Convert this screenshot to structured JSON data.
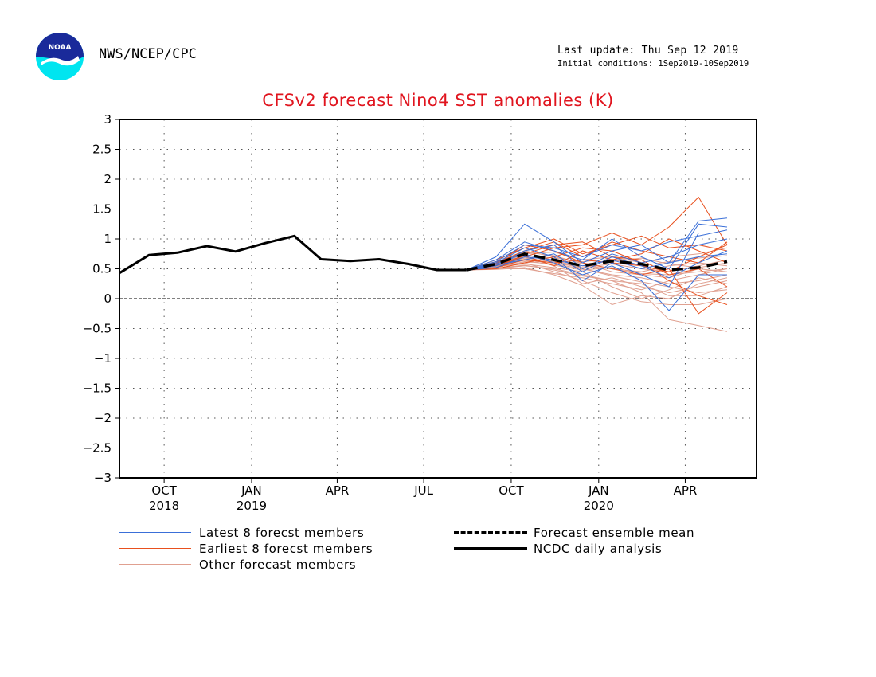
{
  "header": {
    "agency": "NWS/NCEP/CPC",
    "last_update": "Last update: Thu Sep 12 2019",
    "initial_conditions": "Initial conditions: 1Sep2019-10Sep2019",
    "logo_text": "NOAA"
  },
  "colors": {
    "title": "#e0141e",
    "latest_members": "#3a6fd8",
    "earliest_members": "#e8501e",
    "other_members": "#e0a090",
    "mean": "#000000",
    "analysis": "#000000"
  },
  "legend": {
    "latest": "Latest 8 forecst members",
    "earliest": "Earliest 8 forecst members",
    "other": "Other forecast members",
    "mean": "Forecast ensemble mean",
    "analysis": "NCDC daily analysis"
  },
  "chart_data": {
    "type": "line",
    "title": "CFSv2 forecast Nino4 SST anomalies (K)",
    "ylim": [
      -3,
      3
    ],
    "xlim": [
      "2018-08-15",
      "2020-06-15"
    ],
    "y_ticks": [
      "3",
      "2.5",
      "2",
      "1.5",
      "1",
      "0.5",
      "0",
      "−0.5",
      "−1",
      "−1.5",
      "−2",
      "−2.5",
      "−3"
    ],
    "y_tick_values": [
      3,
      2.5,
      2,
      1.5,
      1,
      0.5,
      0,
      -0.5,
      -1,
      -1.5,
      -2,
      -2.5,
      -3
    ],
    "x_ticks": [
      {
        "date": "2018-10-01",
        "label": "OCT",
        "year": "2018"
      },
      {
        "date": "2019-01-01",
        "label": "JAN",
        "year": "2019"
      },
      {
        "date": "2019-04-01",
        "label": "APR",
        "year": ""
      },
      {
        "date": "2019-07-01",
        "label": "JUL",
        "year": ""
      },
      {
        "date": "2019-10-01",
        "label": "OCT",
        "year": ""
      },
      {
        "date": "2020-01-01",
        "label": "JAN",
        "year": "2020"
      },
      {
        "date": "2020-04-01",
        "label": "APR",
        "year": ""
      }
    ],
    "grid": true,
    "analysis": {
      "name": "NCDC daily analysis",
      "x": [
        "2018-08-15",
        "2018-09-15",
        "2018-10-15",
        "2018-11-15",
        "2018-12-15",
        "2019-01-15",
        "2019-02-15",
        "2019-03-15",
        "2019-04-15",
        "2019-05-15",
        "2019-06-15",
        "2019-07-15",
        "2019-08-15"
      ],
      "y": [
        0.43,
        0.73,
        0.77,
        0.88,
        0.79,
        0.93,
        1.05,
        0.66,
        0.63,
        0.66,
        0.58,
        0.48,
        0.48
      ]
    },
    "mean": {
      "name": "Forecast ensemble mean",
      "x": [
        "2019-08-15",
        "2019-09-15",
        "2019-10-15",
        "2019-11-15",
        "2019-12-15",
        "2020-01-15",
        "2020-02-15",
        "2020-03-15",
        "2020-04-15",
        "2020-05-15"
      ],
      "y": [
        0.48,
        0.58,
        0.75,
        0.65,
        0.55,
        0.63,
        0.58,
        0.48,
        0.52,
        0.62
      ]
    },
    "members_x": [
      "2019-08-15",
      "2019-09-15",
      "2019-10-15",
      "2019-11-15",
      "2019-12-15",
      "2020-01-15",
      "2020-02-15",
      "2020-03-15",
      "2020-04-15",
      "2020-05-15"
    ],
    "latest_members": [
      [
        0.48,
        0.7,
        1.25,
        0.95,
        0.6,
        0.8,
        0.9,
        0.6,
        1.3,
        1.35
      ],
      [
        0.48,
        0.65,
        0.95,
        0.8,
        0.65,
        1.0,
        0.7,
        0.5,
        1.25,
        1.2
      ],
      [
        0.48,
        0.6,
        0.85,
        0.7,
        0.3,
        0.6,
        0.4,
        0.2,
        1.1,
        1.1
      ],
      [
        0.48,
        0.55,
        0.8,
        0.9,
        0.5,
        0.75,
        0.6,
        0.7,
        0.9,
        1.0
      ],
      [
        0.48,
        0.58,
        0.75,
        0.6,
        0.4,
        0.55,
        0.3,
        -0.2,
        0.4,
        0.4
      ],
      [
        0.48,
        0.62,
        0.9,
        0.85,
        0.7,
        0.9,
        0.8,
        0.95,
        1.05,
        1.15
      ],
      [
        0.48,
        0.52,
        0.7,
        0.65,
        0.55,
        0.65,
        0.5,
        0.6,
        0.7,
        0.75
      ],
      [
        0.48,
        0.56,
        0.65,
        0.75,
        0.45,
        0.7,
        0.55,
        0.35,
        0.6,
        0.8
      ]
    ],
    "earliest_members": [
      [
        0.48,
        0.55,
        0.7,
        0.85,
        0.9,
        1.1,
        0.9,
        1.2,
        1.7,
        0.9
      ],
      [
        0.48,
        0.6,
        0.8,
        0.95,
        0.7,
        0.95,
        0.8,
        0.7,
        0.6,
        0.95
      ],
      [
        0.48,
        0.5,
        0.6,
        0.7,
        0.85,
        0.8,
        0.6,
        0.3,
        0.05,
        -0.1
      ],
      [
        0.48,
        0.58,
        0.9,
        0.8,
        0.6,
        0.5,
        0.4,
        0.5,
        -0.25,
        0.1
      ],
      [
        0.48,
        0.65,
        0.85,
        1.0,
        0.75,
        0.9,
        1.05,
        0.85,
        0.9,
        0.8
      ],
      [
        0.48,
        0.52,
        0.65,
        0.6,
        0.65,
        0.6,
        0.55,
        0.45,
        0.7,
        0.9
      ],
      [
        0.48,
        0.62,
        0.75,
        0.9,
        0.95,
        0.7,
        0.65,
        0.4,
        0.5,
        0.2
      ],
      [
        0.48,
        0.56,
        0.72,
        0.55,
        0.8,
        0.65,
        0.75,
        1.0,
        0.8,
        0.6
      ]
    ],
    "other_members": [
      [
        0.48,
        0.5,
        0.55,
        0.5,
        0.4,
        0.3,
        0.1,
        -0.35,
        -0.45,
        -0.55
      ],
      [
        0.48,
        0.55,
        0.6,
        0.45,
        0.3,
        0.1,
        -0.05,
        -0.1,
        -0.1,
        0.0
      ],
      [
        0.48,
        0.58,
        0.7,
        0.55,
        0.25,
        0.35,
        0.2,
        0.1,
        0.2,
        0.3
      ],
      [
        0.48,
        0.6,
        0.8,
        0.7,
        0.6,
        0.45,
        0.4,
        0.35,
        0.5,
        0.45
      ],
      [
        0.48,
        0.52,
        0.62,
        0.58,
        0.5,
        0.4,
        0.35,
        0.25,
        0.3,
        0.4
      ],
      [
        0.48,
        0.56,
        0.68,
        0.62,
        0.55,
        0.5,
        0.45,
        0.55,
        0.6,
        0.55
      ],
      [
        0.48,
        0.54,
        0.58,
        0.52,
        0.45,
        0.2,
        0.0,
        0.15,
        0.35,
        0.25
      ],
      [
        0.48,
        0.62,
        0.75,
        0.78,
        0.65,
        0.7,
        0.6,
        0.7,
        0.75,
        0.85
      ],
      [
        0.48,
        0.5,
        0.5,
        0.42,
        0.35,
        0.25,
        0.15,
        0.3,
        0.4,
        0.5
      ],
      [
        0.48,
        0.57,
        0.66,
        0.6,
        0.52,
        0.58,
        0.5,
        0.45,
        0.55,
        0.65
      ],
      [
        0.48,
        0.53,
        0.6,
        0.64,
        0.5,
        0.38,
        0.28,
        0.2,
        0.1,
        0.15
      ],
      [
        0.48,
        0.59,
        0.72,
        0.68,
        0.62,
        0.66,
        0.55,
        0.62,
        0.68,
        0.72
      ],
      [
        0.48,
        0.51,
        0.56,
        0.48,
        0.38,
        0.3,
        0.25,
        0.05,
        0.05,
        0.2
      ],
      [
        0.48,
        0.55,
        0.64,
        0.56,
        0.48,
        0.52,
        0.42,
        0.4,
        0.45,
        0.5
      ],
      [
        0.48,
        0.6,
        0.78,
        0.72,
        0.58,
        0.62,
        0.68,
        0.58,
        0.52,
        0.6
      ],
      [
        0.48,
        0.49,
        0.52,
        0.4,
        0.22,
        -0.1,
        0.05,
        0.0,
        0.25,
        0.35
      ]
    ]
  }
}
